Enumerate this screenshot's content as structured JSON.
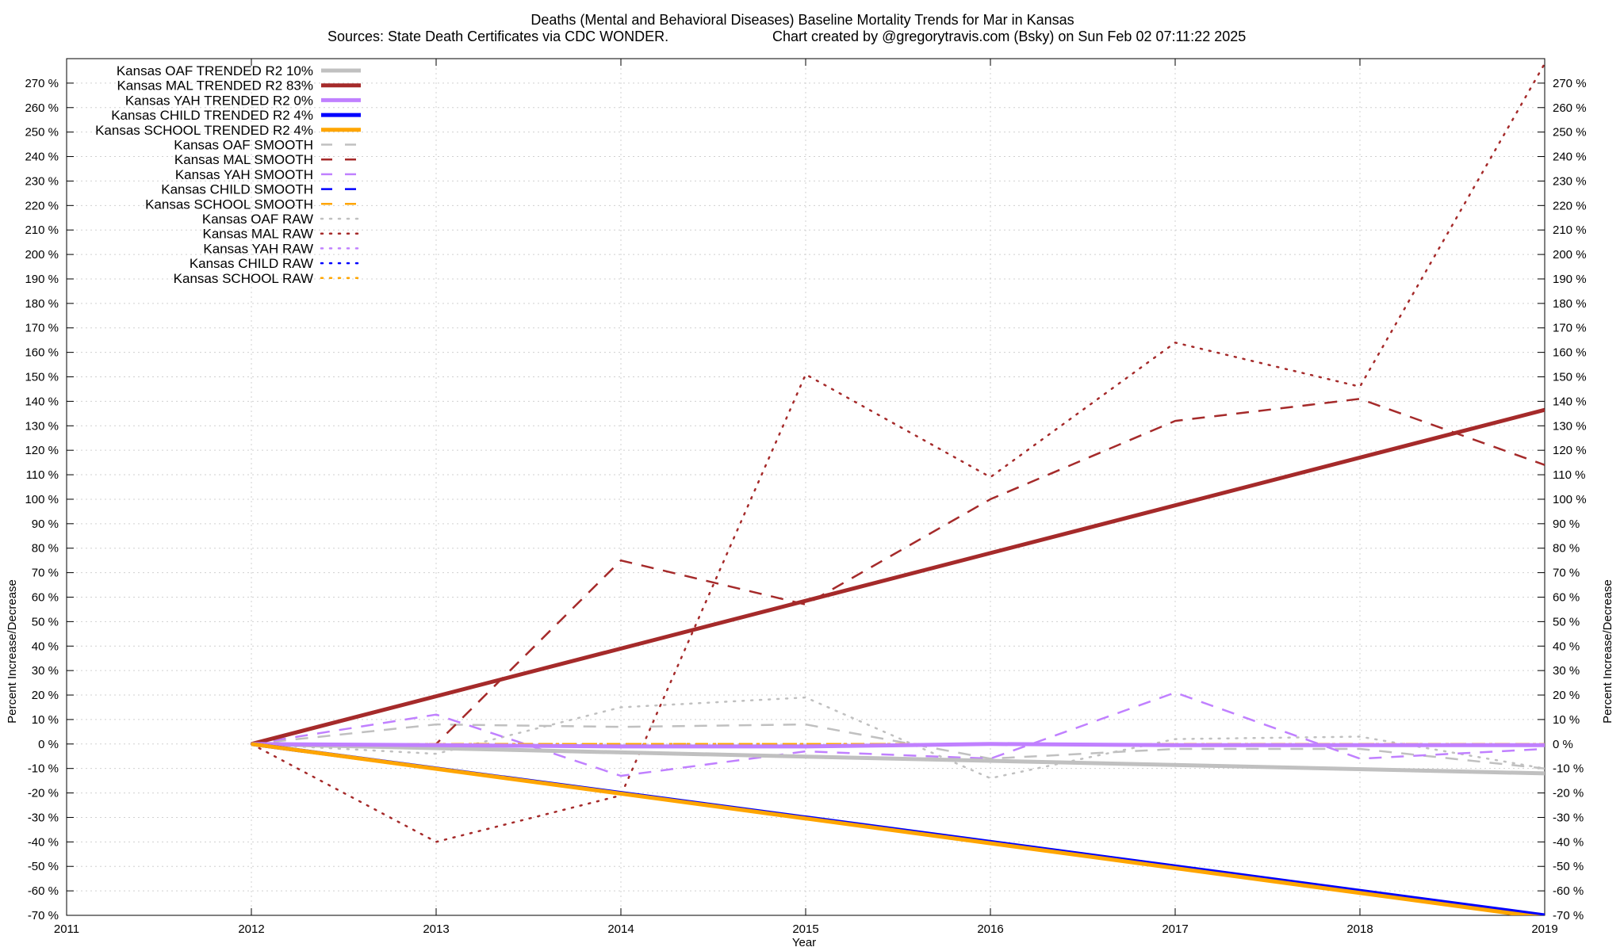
{
  "chart_data": {
    "type": "line",
    "title": "Deaths (Mental and Behavioral Diseases)  Baseline Mortality Trends for Mar in Kansas",
    "subtitle_left": "Sources: State Death Certificates via CDC WONDER.",
    "subtitle_right": "Chart created by @gregorytravis.com (Bsky) on Sun Feb 02 07:11:22 2025",
    "xlabel": "Year",
    "ylabel_left": "Percent Increase/Decrease",
    "ylabel_right": "Percent Increase/Decrease",
    "xlim": [
      2011,
      2019
    ],
    "ylim": [
      -70,
      280
    ],
    "x_ticks": [
      2011,
      2012,
      2013,
      2014,
      2015,
      2016,
      2017,
      2018,
      2019
    ],
    "y_ticks": [
      -70,
      -60,
      -50,
      -40,
      -30,
      -20,
      -10,
      0,
      10,
      20,
      30,
      40,
      50,
      60,
      70,
      80,
      90,
      100,
      110,
      120,
      130,
      140,
      150,
      160,
      170,
      180,
      190,
      200,
      210,
      220,
      230,
      240,
      250,
      260,
      270
    ],
    "y_tick_suffix": " %",
    "grid": true,
    "legend_position": "top-left",
    "series": [
      {
        "name": "Kansas OAF TRENDED R2  10%",
        "style": "solid",
        "width": 5,
        "color": "#c0c0c0",
        "x": [
          2012,
          2019
        ],
        "y": [
          0,
          -12
        ]
      },
      {
        "name": "Kansas MAL TRENDED R2  83%",
        "style": "solid",
        "width": 5,
        "color": "#a52a2a",
        "x": [
          2012,
          2019
        ],
        "y": [
          0,
          136.5
        ]
      },
      {
        "name": "Kansas YAH TRENDED R2   0%",
        "style": "solid",
        "width": 5,
        "color": "#c080ff",
        "x": [
          2012,
          2013,
          2014,
          2015,
          2016,
          2017,
          2018,
          2019
        ],
        "y": [
          0,
          -0.5,
          -1,
          -1,
          0,
          -0.5,
          -0.5,
          -0.5
        ]
      },
      {
        "name": "Kansas CHILD TRENDED R2   4%",
        "style": "solid",
        "width": 5,
        "color": "#0000ff",
        "x": [
          2012,
          2019
        ],
        "y": [
          0,
          -70
        ]
      },
      {
        "name": "Kansas SCHOOL TRENDED R2   4%",
        "style": "solid",
        "width": 5,
        "color": "#ffa500",
        "x": [
          2012,
          2019
        ],
        "y": [
          0,
          -71
        ]
      },
      {
        "name": "Kansas OAF SMOOTH",
        "style": "dashed",
        "width": 2.5,
        "color": "#c0c0c0",
        "x": [
          2012,
          2013,
          2014,
          2015,
          2016,
          2017,
          2018,
          2019
        ],
        "y": [
          0,
          8,
          7,
          8,
          -6,
          -2,
          -2,
          -10
        ]
      },
      {
        "name": "Kansas MAL SMOOTH",
        "style": "dashed",
        "width": 2.5,
        "color": "#a52a2a",
        "x": [
          2012,
          2013,
          2014,
          2015,
          2016,
          2017,
          2018,
          2019
        ],
        "y": [
          0,
          0,
          75,
          57,
          100,
          132,
          141,
          114
        ]
      },
      {
        "name": "Kansas YAH SMOOTH",
        "style": "dashed",
        "width": 2.5,
        "color": "#c080ff",
        "x": [
          2012,
          2013,
          2014,
          2015,
          2016,
          2017,
          2018,
          2019
        ],
        "y": [
          0,
          12,
          -13,
          -3,
          -6,
          21,
          -6,
          -2
        ]
      },
      {
        "name": "Kansas CHILD SMOOTH",
        "style": "dashed",
        "width": 2.5,
        "color": "#0000ff",
        "x": [
          2012,
          2019
        ],
        "y": [
          0,
          0
        ]
      },
      {
        "name": "Kansas SCHOOL SMOOTH",
        "style": "dashed",
        "width": 2.5,
        "color": "#ffa500",
        "x": [
          2012,
          2019
        ],
        "y": [
          0,
          0
        ]
      },
      {
        "name": "Kansas OAF RAW",
        "style": "dotted",
        "width": 2.5,
        "color": "#c0c0c0",
        "x": [
          2012,
          2013,
          2014,
          2015,
          2016,
          2017,
          2018,
          2019
        ],
        "y": [
          0,
          -4,
          15,
          19,
          -14,
          2,
          3,
          -10
        ]
      },
      {
        "name": "Kansas MAL RAW",
        "style": "dotted",
        "width": 2.5,
        "color": "#a52a2a",
        "x": [
          2012,
          2013,
          2014,
          2015,
          2016,
          2017,
          2018,
          2019
        ],
        "y": [
          0,
          -40,
          -21,
          151,
          109,
          164,
          146,
          278
        ]
      },
      {
        "name": "Kansas YAH RAW",
        "style": "dotted",
        "width": 2.5,
        "color": "#c080ff",
        "x": [
          2012,
          2019
        ],
        "y": [
          0,
          0
        ]
      },
      {
        "name": "Kansas CHILD RAW",
        "style": "dotted",
        "width": 2.5,
        "color": "#0000ff",
        "x": [
          2012,
          2019
        ],
        "y": [
          0,
          0
        ]
      },
      {
        "name": "Kansas SCHOOL RAW",
        "style": "dotted",
        "width": 2.5,
        "color": "#ffa500",
        "x": [
          2012,
          2019
        ],
        "y": [
          0,
          0
        ]
      }
    ]
  }
}
